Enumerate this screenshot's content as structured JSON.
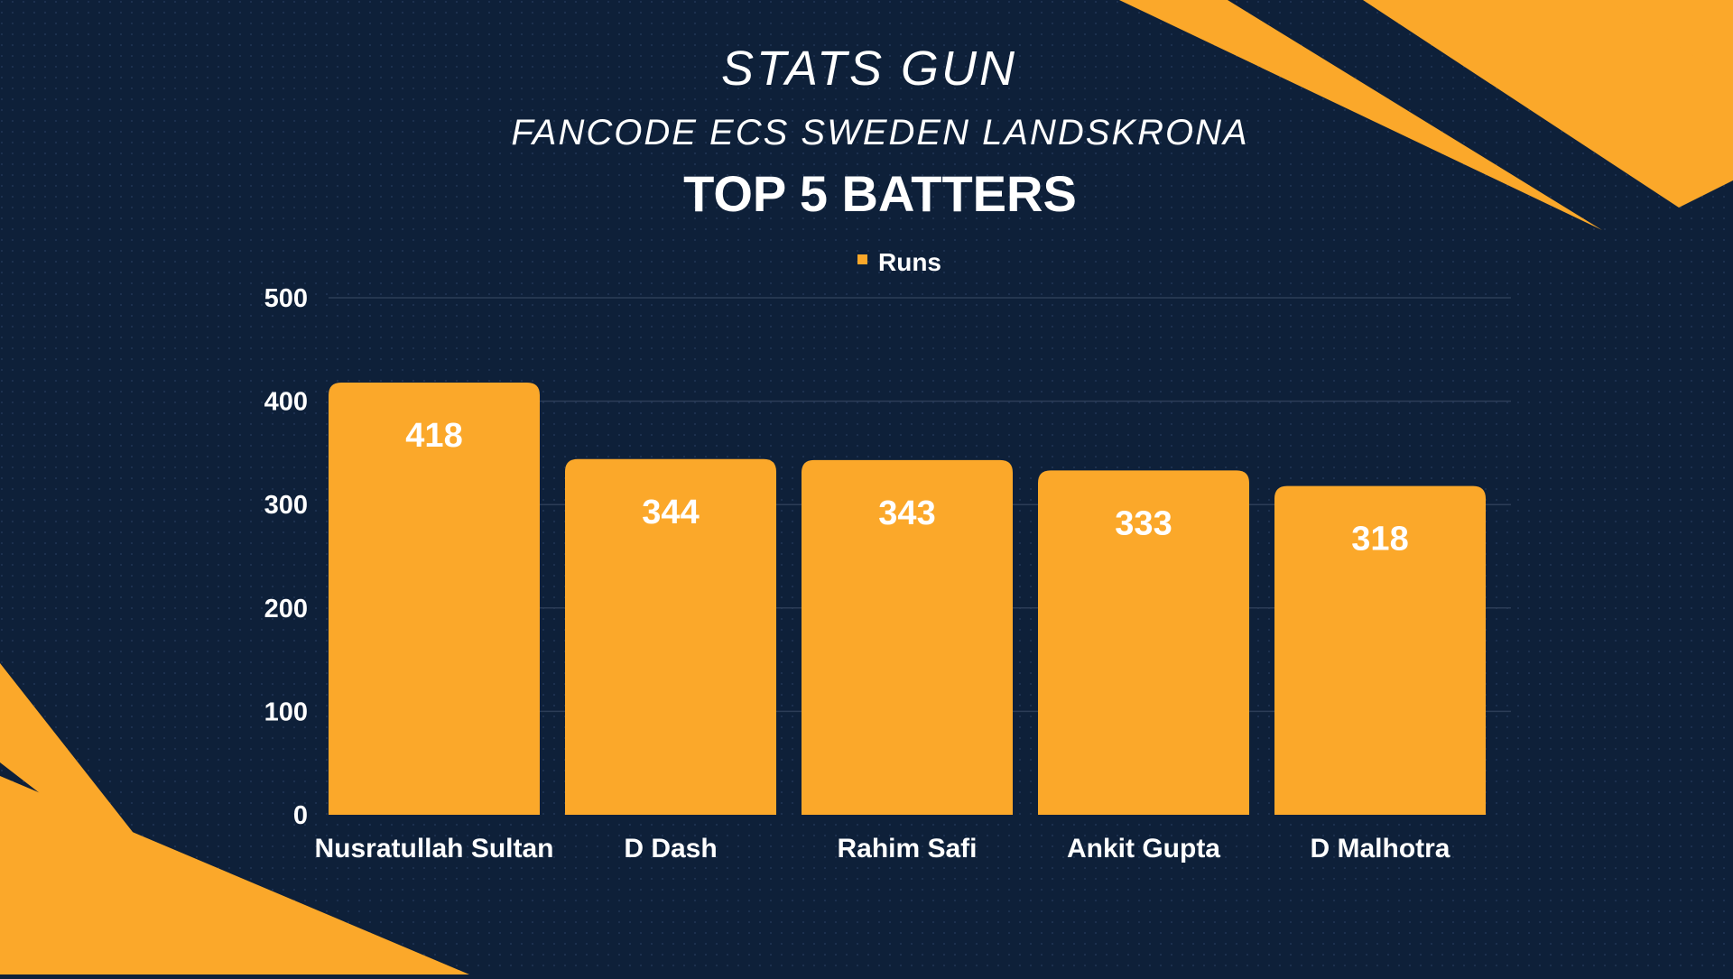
{
  "header": {
    "brand": "STATS GUN",
    "event": "FANCODE ECS SWEDEN LANDSKRONA",
    "heading": "TOP 5 BATTERS"
  },
  "colors": {
    "background": "#0e2039",
    "accent": "#fba82a",
    "text": "#ffffff",
    "grid": "#2c3d57"
  },
  "chart_data": {
    "type": "bar",
    "title": "TOP 5 BATTERS",
    "categories": [
      "Nusratullah Sultan",
      "D Dash",
      "Rahim Safi",
      "Ankit Gupta",
      "D Malhotra"
    ],
    "series": [
      {
        "name": "Runs",
        "values": [
          418,
          344,
          343,
          333,
          318
        ]
      }
    ],
    "ylim": [
      0,
      500
    ],
    "yticks": [
      0,
      100,
      200,
      300,
      400,
      500
    ],
    "grid": true,
    "legend": "top-center",
    "data_labels": true
  }
}
